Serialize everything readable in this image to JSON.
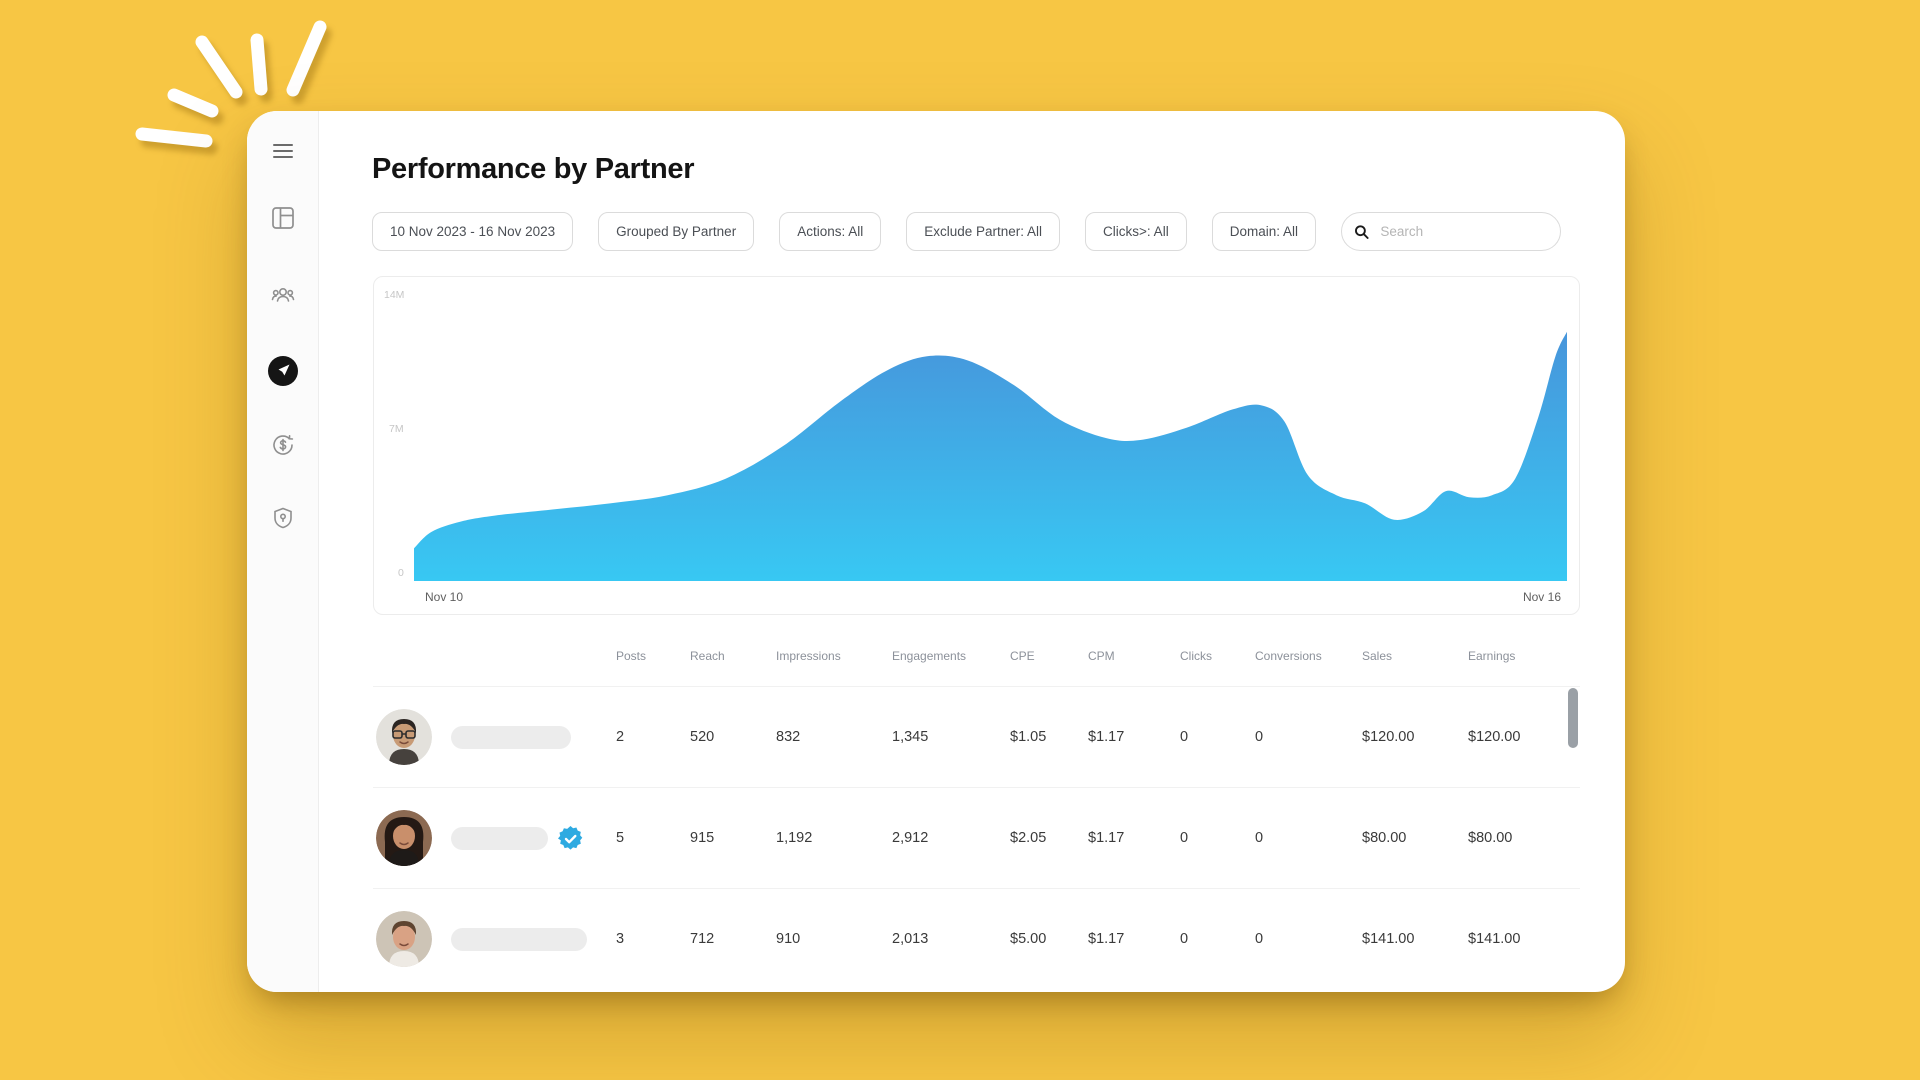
{
  "window": {
    "background_color": "#F7C644"
  },
  "header": {
    "title": "Performance by Partner"
  },
  "sidebar": {
    "items": [
      {
        "icon": "menu-icon",
        "active": false
      },
      {
        "icon": "dashboard-layout-icon",
        "active": false
      },
      {
        "icon": "partners-team-icon",
        "active": false
      },
      {
        "icon": "discovery-compass-icon",
        "active": true
      },
      {
        "icon": "payments-dollar-icon",
        "active": false
      },
      {
        "icon": "security-shield-icon",
        "active": false
      }
    ]
  },
  "filters": {
    "chips": [
      "10 Nov 2023 - 16 Nov 2023",
      "Grouped By Partner",
      "Actions: All",
      "Exclude Partner: All",
      "Clicks>: All",
      "Domain: All"
    ],
    "search_placeholder": "Search"
  },
  "chart_data": {
    "type": "area",
    "title": "",
    "x_axis_labels": [
      "Nov 10",
      "Nov 16"
    ],
    "y_ticks": [
      "14M",
      "7M",
      "0"
    ],
    "ylim": [
      0,
      14000000
    ],
    "grid": false,
    "legend": false,
    "gradient": [
      "#4795DB",
      "#38C8F3"
    ],
    "series": [
      {
        "name": "value",
        "unit": "millions",
        "x_unit": "fraction of date range Nov 10 - Nov 16",
        "points": [
          [
            0.0,
            1.6
          ],
          [
            0.015,
            2.4
          ],
          [
            0.04,
            2.9
          ],
          [
            0.07,
            3.2
          ],
          [
            0.12,
            3.5
          ],
          [
            0.17,
            3.8
          ],
          [
            0.22,
            4.2
          ],
          [
            0.27,
            5.0
          ],
          [
            0.32,
            6.6
          ],
          [
            0.37,
            8.8
          ],
          [
            0.41,
            10.3
          ],
          [
            0.445,
            11.0
          ],
          [
            0.48,
            10.8
          ],
          [
            0.52,
            9.6
          ],
          [
            0.56,
            7.9
          ],
          [
            0.6,
            7.0
          ],
          [
            0.63,
            6.9
          ],
          [
            0.67,
            7.5
          ],
          [
            0.71,
            8.4
          ],
          [
            0.735,
            8.6
          ],
          [
            0.755,
            7.8
          ],
          [
            0.775,
            5.2
          ],
          [
            0.8,
            4.2
          ],
          [
            0.825,
            3.8
          ],
          [
            0.85,
            3.0
          ],
          [
            0.875,
            3.4
          ],
          [
            0.895,
            4.4
          ],
          [
            0.915,
            4.1
          ],
          [
            0.935,
            4.2
          ],
          [
            0.955,
            5.0
          ],
          [
            0.975,
            8.0
          ],
          [
            0.99,
            11.0
          ],
          [
            1.0,
            12.2
          ]
        ]
      }
    ]
  },
  "table": {
    "columns": [
      "Posts",
      "Reach",
      "Impressions",
      "Engagements",
      "CPE",
      "CPM",
      "Clicks",
      "Conversions",
      "Sales",
      "Earnings"
    ],
    "rows": [
      {
        "name_hidden": true,
        "verified": false,
        "avatar": {
          "bg": "#E3E1DC",
          "hair": "#2B2522",
          "skin": "#C89B76",
          "shirt": "#46413D",
          "glasses": true,
          "long_hair": false
        },
        "posts": "2",
        "reach": "520",
        "impressions": "832",
        "engagements": "1,345",
        "cpe": "$1.05",
        "cpm": "$1.17",
        "clicks": "0",
        "conversions": "0",
        "sales": "$120.00",
        "earnings": "$120.00"
      },
      {
        "name_hidden": true,
        "verified": true,
        "avatar": {
          "bg": "#8C6A52",
          "hair": "#241914",
          "skin": "#C98F6B",
          "shirt": "#1E1A18",
          "glasses": false,
          "long_hair": true
        },
        "posts": "5",
        "reach": "915",
        "impressions": "1,192",
        "engagements": "2,912",
        "cpe": "$2.05",
        "cpm": "$1.17",
        "clicks": "0",
        "conversions": "0",
        "sales": "$80.00",
        "earnings": "$80.00"
      },
      {
        "name_hidden": true,
        "verified": false,
        "avatar": {
          "bg": "#CDC4B6",
          "hair": "#5E4430",
          "skin": "#D9A284",
          "shirt": "#EEEAE4",
          "glasses": false,
          "long_hair": false
        },
        "posts": "3",
        "reach": "712",
        "impressions": "910",
        "engagements": "2,013",
        "cpe": "$5.00",
        "cpm": "$1.17",
        "clicks": "0",
        "conversions": "0",
        "sales": "$141.00",
        "earnings": "$141.00"
      }
    ],
    "badge_color": "#2EAAE1"
  }
}
